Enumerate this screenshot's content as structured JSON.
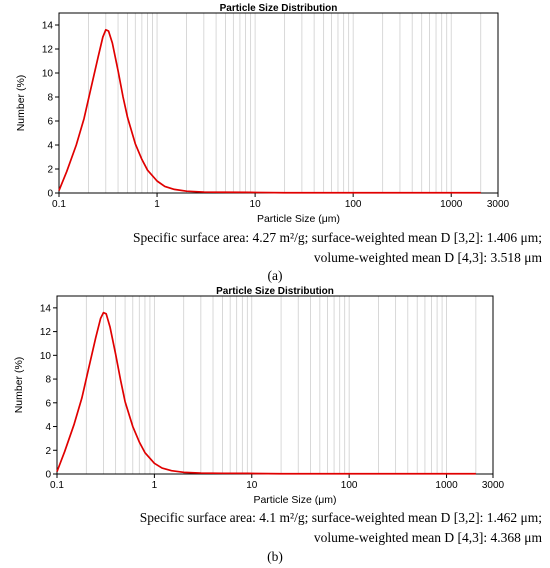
{
  "chart_data": [
    {
      "type": "line",
      "title": "Particle Size Distribution",
      "xlabel": "Particle Size (μm)",
      "ylabel": "Number (%)",
      "xscale": "log",
      "xlim": [
        0.1,
        3000
      ],
      "ylim": [
        0,
        15
      ],
      "xticks": [
        "0.1",
        "1",
        "10",
        "100",
        "1000",
        "3000"
      ],
      "yticks": [
        "0",
        "2",
        "4",
        "6",
        "8",
        "10",
        "12",
        "14"
      ],
      "grid": "vertical minor log gridlines",
      "series": [
        {
          "color": "#e00000",
          "x": [
            0.1,
            0.12,
            0.15,
            0.18,
            0.21,
            0.25,
            0.28,
            0.3,
            0.32,
            0.35,
            0.4,
            0.45,
            0.5,
            0.6,
            0.7,
            0.8,
            1.0,
            1.2,
            1.5,
            2.0,
            3.0,
            5.0,
            9.0,
            20,
            100,
            1000,
            2000
          ],
          "y": [
            0.2,
            1.8,
            4.0,
            6.2,
            8.6,
            11.3,
            13.0,
            13.6,
            13.5,
            12.5,
            10.2,
            8.0,
            6.3,
            4.1,
            2.8,
            1.9,
            1.0,
            0.55,
            0.3,
            0.15,
            0.08,
            0.06,
            0.05,
            0.02,
            0.02,
            0.02,
            0.02
          ]
        }
      ]
    },
    {
      "type": "line",
      "title": "Particle Size Distribution",
      "xlabel": "Particle Size (μm)",
      "ylabel": "Number (%)",
      "xscale": "log",
      "xlim": [
        0.1,
        3000
      ],
      "ylim": [
        0,
        15
      ],
      "xticks": [
        "0.1",
        "1",
        "10",
        "100",
        "1000",
        "3000"
      ],
      "yticks": [
        "0",
        "2",
        "4",
        "6",
        "8",
        "10",
        "12",
        "14"
      ],
      "grid": "vertical minor log gridlines",
      "series": [
        {
          "color": "#e00000",
          "x": [
            0.1,
            0.12,
            0.15,
            0.18,
            0.21,
            0.25,
            0.28,
            0.3,
            0.32,
            0.35,
            0.4,
            0.45,
            0.5,
            0.6,
            0.7,
            0.8,
            1.0,
            1.2,
            1.5,
            2.0,
            3.0,
            5.0,
            9.0,
            20,
            100,
            1000,
            2000
          ],
          "y": [
            0.2,
            1.9,
            4.2,
            6.4,
            8.8,
            11.5,
            13.1,
            13.6,
            13.5,
            12.4,
            10.1,
            7.9,
            6.1,
            4.0,
            2.7,
            1.8,
            0.9,
            0.5,
            0.28,
            0.14,
            0.08,
            0.06,
            0.05,
            0.02,
            0.02,
            0.02,
            0.02
          ]
        }
      ]
    }
  ],
  "captions": [
    {
      "line1": "Specific surface area: 4.27 m²/g; surface-weighted mean D [3,2]: 1.406 μm;",
      "line2": "volume-weighted mean D [4,3]: 3.518 μm",
      "letter": "(a)"
    },
    {
      "line1": "Specific surface area: 4.1 m²/g; surface-weighted mean D [3,2]: 1.462 μm;",
      "line2": "volume-weighted mean D [4,3]: 4.368 μm",
      "letter": "(b)"
    }
  ]
}
